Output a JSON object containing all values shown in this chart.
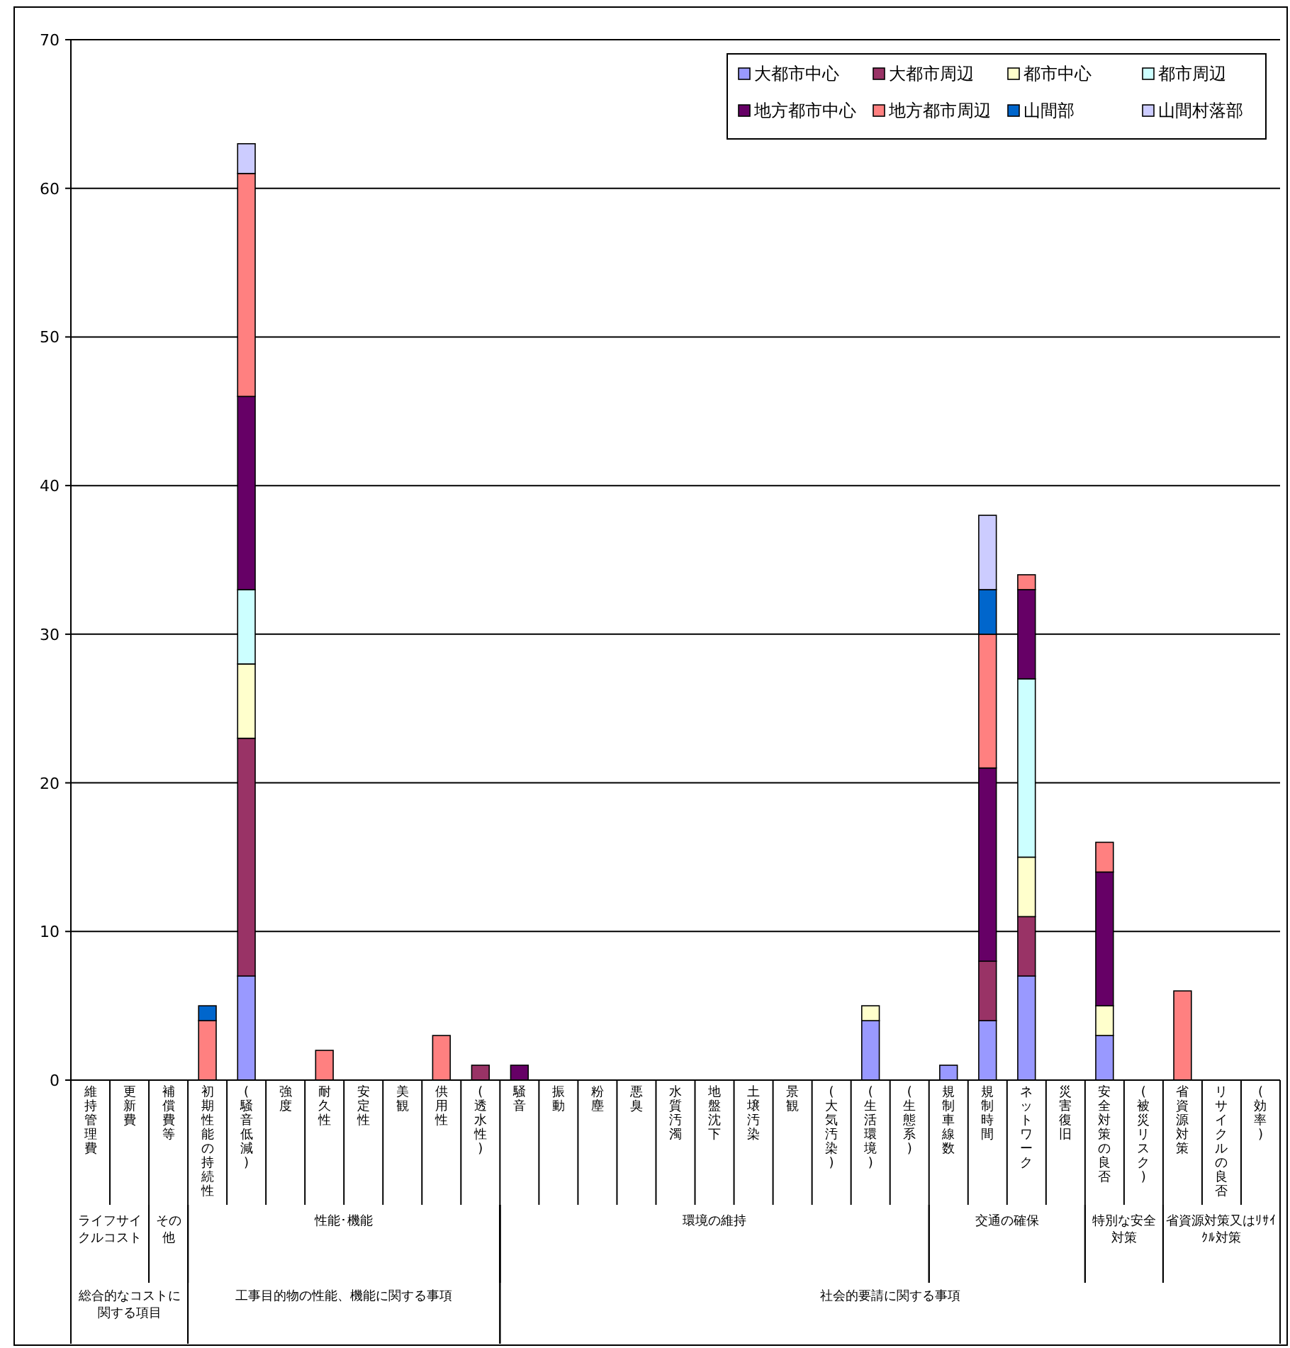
{
  "chart_data": {
    "type": "bar",
    "stacked": true,
    "categories": [
      "維持管理費",
      "更新費",
      "補償費等",
      "初期性能の持続性",
      "(騒音低減)",
      "強度",
      "耐久性",
      "安定性",
      "美観",
      "供用性",
      "(透水性)",
      "騒音",
      "振動",
      "粉塵",
      "悪臭",
      "水質汚濁",
      "地盤沈下",
      "土壌汚染",
      "景観",
      "(大気汚染)",
      "(生活環境)",
      "(生態系)",
      "規制車線数",
      "規制時間",
      "ネットワーク",
      "災害復旧",
      "安全対策の良否",
      "(被災リスク)",
      "省資源対策",
      "リサイクルの良否",
      "(効率)"
    ],
    "series": [
      {
        "name": "大都市中心",
        "color": "#9999ff",
        "values": [
          null,
          null,
          null,
          null,
          7,
          null,
          null,
          null,
          null,
          null,
          null,
          null,
          null,
          null,
          null,
          null,
          null,
          null,
          null,
          null,
          4,
          null,
          1,
          4,
          7,
          null,
          3,
          null,
          null,
          null,
          null
        ]
      },
      {
        "name": "大都市周辺",
        "color": "#993366",
        "values": [
          null,
          null,
          null,
          null,
          16,
          null,
          null,
          null,
          null,
          null,
          1,
          null,
          null,
          null,
          null,
          null,
          null,
          null,
          null,
          null,
          null,
          null,
          null,
          4,
          4,
          null,
          null,
          null,
          null,
          null,
          null
        ]
      },
      {
        "name": "都市中心",
        "color": "#ffffcc",
        "values": [
          null,
          null,
          null,
          null,
          5,
          null,
          null,
          null,
          null,
          null,
          null,
          null,
          null,
          null,
          null,
          null,
          null,
          null,
          null,
          null,
          1,
          null,
          null,
          null,
          4,
          null,
          2,
          null,
          null,
          null,
          null
        ]
      },
      {
        "name": "都市周辺",
        "color": "#ccffff",
        "values": [
          null,
          null,
          null,
          null,
          5,
          null,
          null,
          null,
          null,
          null,
          null,
          null,
          null,
          null,
          null,
          null,
          null,
          null,
          null,
          null,
          null,
          null,
          null,
          null,
          12,
          null,
          null,
          null,
          null,
          null,
          null
        ]
      },
      {
        "name": "地方都市中心",
        "color": "#660066",
        "values": [
          null,
          null,
          null,
          null,
          13,
          null,
          null,
          null,
          null,
          null,
          null,
          1,
          null,
          null,
          null,
          null,
          null,
          null,
          null,
          null,
          null,
          null,
          null,
          13,
          6,
          null,
          9,
          null,
          null,
          null,
          null
        ]
      },
      {
        "name": "地方都市周辺",
        "color": "#ff8080",
        "values": [
          null,
          null,
          null,
          4,
          15,
          null,
          2,
          null,
          null,
          3,
          null,
          null,
          null,
          null,
          null,
          null,
          null,
          null,
          null,
          null,
          null,
          null,
          null,
          9,
          1,
          null,
          2,
          null,
          6,
          null,
          null
        ]
      },
      {
        "name": "山間部",
        "color": "#0066cc",
        "values": [
          null,
          null,
          null,
          1,
          null,
          null,
          null,
          null,
          null,
          null,
          null,
          null,
          null,
          null,
          null,
          null,
          null,
          null,
          null,
          null,
          null,
          null,
          null,
          3,
          null,
          null,
          null,
          null,
          null,
          null,
          null
        ]
      },
      {
        "name": "山間村落部",
        "color": "#ccccff",
        "values": [
          null,
          null,
          null,
          null,
          2,
          null,
          null,
          null,
          null,
          null,
          null,
          null,
          null,
          null,
          null,
          null,
          null,
          null,
          null,
          null,
          null,
          null,
          null,
          5,
          null,
          null,
          null,
          null,
          null,
          null,
          null
        ]
      }
    ],
    "ylim": [
      0,
      70
    ],
    "yticks": [
      0,
      10,
      20,
      30,
      40,
      50,
      60,
      70
    ],
    "grid": "y",
    "legend": "top right",
    "annotations": [
      "ライフサイクルコスト",
      "その他",
      "性能･機能",
      "環境の維持",
      "交通の確保",
      "特別な安全対策",
      "省資源対策又はﾘｻｲｸﾙ対策",
      "総合的なコストに関する項目",
      "工事目的物の性能、機能に関する事項",
      "社会的要請に関する事項"
    ]
  }
}
